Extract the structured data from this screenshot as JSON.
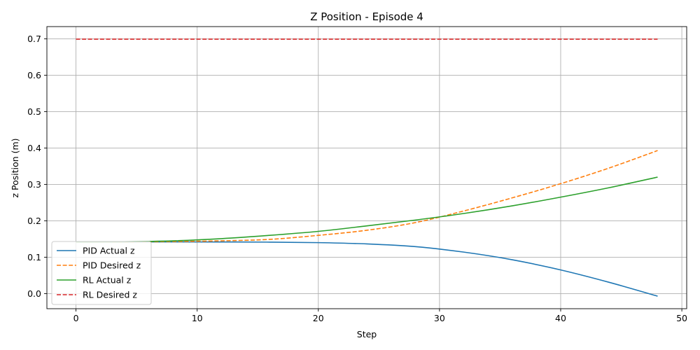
{
  "chart_data": {
    "type": "line",
    "title": "Z Position - Episode 4",
    "xlabel": "Step",
    "ylabel": "z Position (m)",
    "xlim": [
      -2.4,
      50.4
    ],
    "ylim": [
      -0.0415,
      0.7335
    ],
    "xticks": [
      0,
      10,
      20,
      30,
      40,
      50
    ],
    "yticks": [
      0.0,
      0.1,
      0.2,
      0.3,
      0.4,
      0.5,
      0.6,
      0.7
    ],
    "xtick_labels": [
      "0",
      "10",
      "20",
      "30",
      "40",
      "50"
    ],
    "ytick_labels": [
      "0.0",
      "0.1",
      "0.2",
      "0.3",
      "0.4",
      "0.5",
      "0.6",
      "0.7"
    ],
    "grid": true,
    "legend_position": "lower-left",
    "x": [
      0,
      4,
      8,
      12,
      16,
      20,
      24,
      28,
      32,
      36,
      40,
      44,
      48
    ],
    "series": [
      {
        "name": "PID Actual z",
        "color": "#1f77b4",
        "style": "solid",
        "values": [
          0.142,
          0.142,
          0.142,
          0.1418,
          0.1414,
          0.14,
          0.1365,
          0.129,
          0.114,
          0.093,
          0.065,
          0.031,
          -0.007
        ]
      },
      {
        "name": "PID Desired z",
        "color": "#ff7f0e",
        "style": "dashed",
        "values": [
          0.142,
          0.142,
          0.143,
          0.145,
          0.149,
          0.16,
          0.174,
          0.195,
          0.227,
          0.263,
          0.302,
          0.345,
          0.393
        ]
      },
      {
        "name": "RL Actual z",
        "color": "#2ca02c",
        "style": "solid",
        "values": [
          0.142,
          0.1425,
          0.145,
          0.151,
          0.16,
          0.171,
          0.186,
          0.202,
          0.22,
          0.241,
          0.265,
          0.291,
          0.32
        ]
      },
      {
        "name": "RL Desired z",
        "color": "#d62728",
        "style": "dashed",
        "values": [
          0.699,
          0.699,
          0.699,
          0.699,
          0.699,
          0.699,
          0.699,
          0.699,
          0.699,
          0.699,
          0.699,
          0.699,
          0.699
        ]
      }
    ]
  }
}
